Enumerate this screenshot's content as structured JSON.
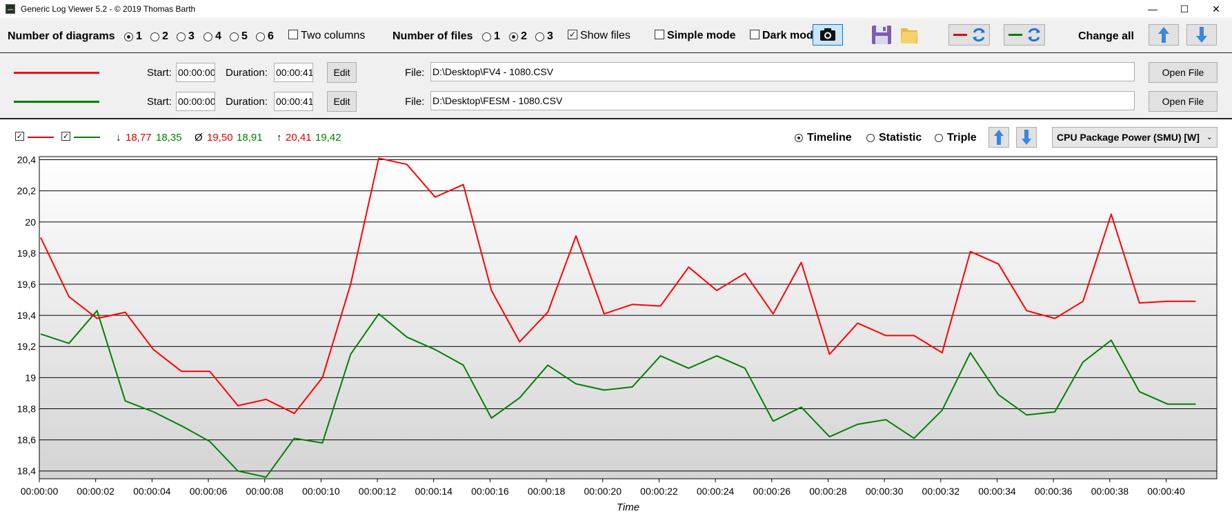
{
  "window": {
    "title": "Generic Log Viewer 5.2 - © 2019 Thomas Barth",
    "min": "—",
    "max": "☐",
    "close": "✕"
  },
  "toolbar": {
    "num_diagrams_label": "Number of diagrams",
    "diagram_options": [
      "1",
      "2",
      "3",
      "4",
      "5",
      "6"
    ],
    "diagram_selected": "1",
    "two_columns_label": "Two columns",
    "num_files_label": "Number of files",
    "file_options": [
      "1",
      "2",
      "3"
    ],
    "file_selected": "2",
    "show_files_label": "Show files",
    "show_files_checked": true,
    "simple_mode_label": "Simple mode",
    "dark_mode_label": "Dark mod",
    "change_all_label": "Change all"
  },
  "files": [
    {
      "color": "#ff0000",
      "start_label": "Start:",
      "start": "00:00:00",
      "duration_label": "Duration:",
      "duration": "00:00:41",
      "edit_label": "Edit",
      "file_label": "File:",
      "path": "D:\\Desktop\\FV4 - 1080.CSV",
      "open_label": "Open File"
    },
    {
      "color": "#008000",
      "start_label": "Start:",
      "start": "00:00:00",
      "duration_label": "Duration:",
      "duration": "00:00:41",
      "edit_label": "Edit",
      "file_label": "File:",
      "path": "D:\\Desktop\\FESM - 1080.CSV",
      "open_label": "Open File"
    }
  ],
  "stats": {
    "min_symbol": "↓",
    "min_red": "18,77",
    "min_green": "18,35",
    "avg_symbol": "Ø",
    "avg_red": "19,50",
    "avg_green": "18,91",
    "max_symbol": "↑",
    "max_red": "20,41",
    "max_green": "19,42"
  },
  "modes": {
    "timeline": "Timeline",
    "statistic": "Statistic",
    "triple": "Triple",
    "selected": "Timeline"
  },
  "sensor": "CPU Package Power (SMU) [W]",
  "colors": {
    "series1": "#ff0000",
    "series2": "#008000",
    "plot_top": "#ffffff",
    "plot_bottom": "#d4d4d4",
    "select_button": "#cce4f7"
  },
  "chart_data": {
    "type": "line",
    "xlabel": "Time",
    "ylabel": "",
    "ylim": [
      18.35,
      20.42
    ],
    "yticks": [
      "18,4",
      "18,6",
      "18,8",
      "19",
      "19,2",
      "19,4",
      "19,6",
      "19,8",
      "20",
      "20,2",
      "20,4"
    ],
    "ytick_values": [
      18.4,
      18.6,
      18.8,
      19.0,
      19.2,
      19.4,
      19.6,
      19.8,
      20.0,
      20.2,
      20.4
    ],
    "xlim": [
      0,
      41.8
    ],
    "xticks": [
      "00:00:00",
      "00:00:02",
      "00:00:04",
      "00:00:06",
      "00:00:08",
      "00:00:10",
      "00:00:12",
      "00:00:14",
      "00:00:16",
      "00:00:18",
      "00:00:20",
      "00:00:22",
      "00:00:24",
      "00:00:26",
      "00:00:28",
      "00:00:30",
      "00:00:32",
      "00:00:34",
      "00:00:36",
      "00:00:38",
      "00:00:40"
    ],
    "xtick_values": [
      0,
      2,
      4,
      6,
      8,
      10,
      12,
      14,
      16,
      18,
      20,
      22,
      24,
      26,
      28,
      30,
      32,
      34,
      36,
      38,
      40
    ],
    "grid": true,
    "series": [
      {
        "color": "#ff0000",
        "x": [
          0.05,
          1.05,
          2.05,
          3.05,
          4.05,
          5.05,
          6.05,
          7.05,
          8.05,
          9.05,
          10.05,
          11.05,
          12.05,
          13.05,
          14.05,
          15.05,
          16.05,
          17.05,
          18.05,
          19.05,
          20.05,
          21.05,
          22.05,
          23.05,
          24.05,
          25.05,
          26.05,
          27.05,
          28.05,
          29.05,
          30.05,
          31.05,
          32.05,
          33.05,
          34.05,
          35.05,
          36.05,
          37.05,
          38.05,
          39.05,
          40.05,
          41.05
        ],
        "values": [
          19.9,
          19.52,
          19.38,
          19.42,
          19.18,
          19.04,
          19.04,
          18.82,
          18.86,
          18.77,
          19.0,
          19.6,
          20.41,
          20.37,
          20.16,
          20.24,
          19.56,
          19.23,
          19.42,
          19.91,
          19.41,
          19.47,
          19.46,
          19.71,
          19.56,
          19.67,
          19.41,
          19.74,
          19.15,
          19.35,
          19.27,
          19.27,
          19.16,
          19.81,
          19.73,
          19.43,
          19.38,
          19.49,
          20.05,
          19.48,
          19.49,
          19.49
        ]
      },
      {
        "color": "#008000",
        "x": [
          0.05,
          1.05,
          2.05,
          3.05,
          4.05,
          5.05,
          6.05,
          7.05,
          8.05,
          9.05,
          10.05,
          11.05,
          12.05,
          13.05,
          14.05,
          15.05,
          16.05,
          17.05,
          18.05,
          19.05,
          20.05,
          21.05,
          22.05,
          23.05,
          24.05,
          25.05,
          26.05,
          27.05,
          28.05,
          29.05,
          30.05,
          31.05,
          32.05,
          33.05,
          34.05,
          35.05,
          36.05,
          37.05,
          38.05,
          39.05,
          40.05,
          41.05
        ],
        "values": [
          19.28,
          19.22,
          19.43,
          18.85,
          18.78,
          18.69,
          18.59,
          18.4,
          18.36,
          18.61,
          18.58,
          19.15,
          19.41,
          19.26,
          19.18,
          19.08,
          18.74,
          18.87,
          19.08,
          18.96,
          18.92,
          18.94,
          19.14,
          19.06,
          19.14,
          19.06,
          18.72,
          18.81,
          18.62,
          18.7,
          18.73,
          18.61,
          18.79,
          19.16,
          18.89,
          18.76,
          18.78,
          19.1,
          19.24,
          18.91,
          18.83,
          18.83
        ]
      }
    ]
  }
}
